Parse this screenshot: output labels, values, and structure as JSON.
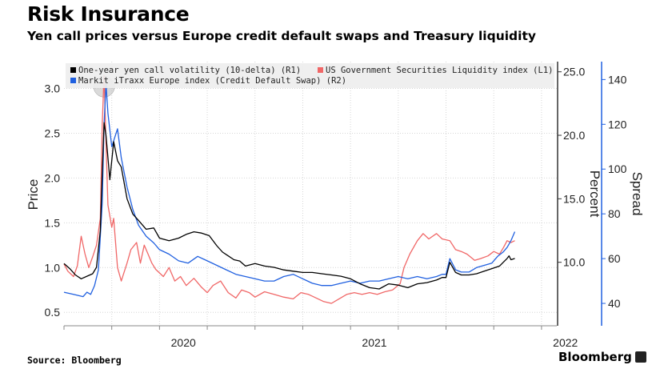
{
  "title": "Risk Insurance",
  "subtitle": "Yen call prices versus Europe credit default swaps and Treasury liquidity",
  "source": "Source: Bloomberg",
  "brand": "Bloomberg",
  "chart_data": {
    "type": "line",
    "x_ticks": [
      {
        "label": "2020",
        "t": 2020.0
      },
      {
        "label": "2021",
        "t": 2021.0
      },
      {
        "label": "2022",
        "t": 2022.0
      }
    ],
    "x_range": [
      2019.5,
      2022.08
    ],
    "grid": true,
    "legend_position": "top",
    "axes": {
      "left": {
        "title": "Price",
        "range": [
          0.35,
          3.3
        ],
        "ticks": [
          0.5,
          1.0,
          1.5,
          2.0,
          2.5,
          3.0
        ],
        "tick_labels": [
          "0.5",
          "1.0",
          "1.5",
          "2.0",
          "2.5",
          "3.0"
        ]
      },
      "right1": {
        "title": "Percent",
        "range": [
          5.0,
          25.8
        ],
        "ticks": [
          10,
          15,
          20,
          25
        ],
        "tick_labels": [
          "10.0",
          "15.0",
          "20.0",
          "25.0"
        ]
      },
      "right2": {
        "title": "Spread",
        "range": [
          30.0,
          148.0
        ],
        "ticks": [
          40,
          60,
          80,
          100,
          120,
          140
        ],
        "tick_labels": [
          "40",
          "60",
          "80",
          "100",
          "120",
          "140"
        ]
      }
    },
    "series": [
      {
        "name": "US Government Securities Liquidity index (L1)",
        "axis": "left",
        "color": "#f06767",
        "points": [
          [
            2019.5,
            1.04
          ],
          [
            2019.52,
            0.96
          ],
          [
            2019.55,
            0.9
          ],
          [
            2019.57,
            1.02
          ],
          [
            2019.59,
            1.35
          ],
          [
            2019.61,
            1.15
          ],
          [
            2019.63,
            1.0
          ],
          [
            2019.65,
            1.12
          ],
          [
            2019.67,
            1.25
          ],
          [
            2019.69,
            1.55
          ],
          [
            2019.7,
            2.6
          ],
          [
            2019.71,
            3.15
          ],
          [
            2019.72,
            2.4
          ],
          [
            2019.73,
            1.7
          ],
          [
            2019.75,
            1.45
          ],
          [
            2019.76,
            1.55
          ],
          [
            2019.78,
            1.0
          ],
          [
            2019.8,
            0.85
          ],
          [
            2019.83,
            1.05
          ],
          [
            2019.85,
            1.2
          ],
          [
            2019.88,
            1.28
          ],
          [
            2019.9,
            1.05
          ],
          [
            2019.92,
            1.25
          ],
          [
            2019.94,
            1.15
          ],
          [
            2019.96,
            1.05
          ],
          [
            2019.98,
            0.98
          ],
          [
            2020.02,
            0.9
          ],
          [
            2020.05,
            1.0
          ],
          [
            2020.08,
            0.85
          ],
          [
            2020.11,
            0.9
          ],
          [
            2020.14,
            0.8
          ],
          [
            2020.18,
            0.88
          ],
          [
            2020.22,
            0.78
          ],
          [
            2020.25,
            0.72
          ],
          [
            2020.28,
            0.8
          ],
          [
            2020.32,
            0.85
          ],
          [
            2020.36,
            0.72
          ],
          [
            2020.4,
            0.66
          ],
          [
            2020.43,
            0.75
          ],
          [
            2020.47,
            0.72
          ],
          [
            2020.5,
            0.67
          ],
          [
            2020.55,
            0.73
          ],
          [
            2020.6,
            0.7
          ],
          [
            2020.65,
            0.67
          ],
          [
            2020.7,
            0.65
          ],
          [
            2020.74,
            0.72
          ],
          [
            2020.78,
            0.7
          ],
          [
            2020.82,
            0.66
          ],
          [
            2020.86,
            0.62
          ],
          [
            2020.9,
            0.6
          ],
          [
            2020.94,
            0.65
          ],
          [
            2020.98,
            0.7
          ],
          [
            2021.02,
            0.72
          ],
          [
            2021.06,
            0.7
          ],
          [
            2021.1,
            0.72
          ],
          [
            2021.14,
            0.7
          ],
          [
            2021.18,
            0.73
          ],
          [
            2021.22,
            0.75
          ],
          [
            2021.26,
            0.82
          ],
          [
            2021.28,
            1.0
          ],
          [
            2021.31,
            1.15
          ],
          [
            2021.35,
            1.3
          ],
          [
            2021.38,
            1.38
          ],
          [
            2021.41,
            1.32
          ],
          [
            2021.45,
            1.38
          ],
          [
            2021.48,
            1.32
          ],
          [
            2021.52,
            1.3
          ],
          [
            2021.55,
            1.2
          ],
          [
            2021.58,
            1.18
          ],
          [
            2021.61,
            1.15
          ],
          [
            2021.65,
            1.08
          ],
          [
            2021.68,
            1.1
          ],
          [
            2021.72,
            1.13
          ],
          [
            2021.75,
            1.18
          ],
          [
            2021.78,
            1.15
          ],
          [
            2021.8,
            1.22
          ],
          [
            2021.82,
            1.3
          ],
          [
            2021.84,
            1.28
          ],
          [
            2021.86,
            1.3
          ]
        ]
      },
      {
        "name": "One-year yen call volatility (10-delta)    (R1)",
        "axis": "right1",
        "color": "#000000",
        "points": [
          [
            2019.5,
            9.9
          ],
          [
            2019.53,
            9.5
          ],
          [
            2019.56,
            9.0
          ],
          [
            2019.59,
            8.7
          ],
          [
            2019.62,
            8.9
          ],
          [
            2019.65,
            9.1
          ],
          [
            2019.67,
            9.6
          ],
          [
            2019.69,
            12.5
          ],
          [
            2019.7,
            17.0
          ],
          [
            2019.71,
            21.0
          ],
          [
            2019.72,
            20.0
          ],
          [
            2019.74,
            16.5
          ],
          [
            2019.76,
            19.5
          ],
          [
            2019.78,
            18.0
          ],
          [
            2019.8,
            17.5
          ],
          [
            2019.83,
            15.0
          ],
          [
            2019.86,
            13.8
          ],
          [
            2019.89,
            13.3
          ],
          [
            2019.93,
            12.6
          ],
          [
            2019.97,
            12.7
          ],
          [
            2020.0,
            11.9
          ],
          [
            2020.05,
            11.7
          ],
          [
            2020.1,
            11.9
          ],
          [
            2020.14,
            12.2
          ],
          [
            2020.18,
            12.4
          ],
          [
            2020.22,
            12.3
          ],
          [
            2020.26,
            12.1
          ],
          [
            2020.3,
            11.3
          ],
          [
            2020.33,
            10.8
          ],
          [
            2020.36,
            10.5
          ],
          [
            2020.39,
            10.2
          ],
          [
            2020.42,
            10.1
          ],
          [
            2020.45,
            9.7
          ],
          [
            2020.5,
            9.9
          ],
          [
            2020.55,
            9.7
          ],
          [
            2020.6,
            9.6
          ],
          [
            2020.65,
            9.4
          ],
          [
            2020.7,
            9.3
          ],
          [
            2020.75,
            9.2
          ],
          [
            2020.8,
            9.2
          ],
          [
            2020.85,
            9.1
          ],
          [
            2020.9,
            9.0
          ],
          [
            2020.95,
            8.9
          ],
          [
            2021.0,
            8.7
          ],
          [
            2021.05,
            8.3
          ],
          [
            2021.1,
            8.0
          ],
          [
            2021.15,
            7.9
          ],
          [
            2021.2,
            8.3
          ],
          [
            2021.25,
            8.2
          ],
          [
            2021.3,
            8.0
          ],
          [
            2021.35,
            8.3
          ],
          [
            2021.4,
            8.4
          ],
          [
            2021.45,
            8.6
          ],
          [
            2021.48,
            8.8
          ],
          [
            2021.5,
            8.8
          ],
          [
            2021.52,
            10.0
          ],
          [
            2021.55,
            9.2
          ],
          [
            2021.58,
            9.0
          ],
          [
            2021.62,
            9.0
          ],
          [
            2021.66,
            9.1
          ],
          [
            2021.7,
            9.3
          ],
          [
            2021.74,
            9.5
          ],
          [
            2021.78,
            9.7
          ],
          [
            2021.8,
            10.0
          ],
          [
            2021.82,
            10.3
          ],
          [
            2021.83,
            10.5
          ],
          [
            2021.84,
            10.2
          ],
          [
            2021.86,
            10.3
          ]
        ]
      },
      {
        "name": "Markit iTraxx Europe index (Credit Default Swap) (R2)",
        "axis": "right2",
        "color": "#2060e0",
        "points": [
          [
            2019.5,
            45
          ],
          [
            2019.55,
            44
          ],
          [
            2019.6,
            43
          ],
          [
            2019.62,
            45
          ],
          [
            2019.64,
            44
          ],
          [
            2019.66,
            48
          ],
          [
            2019.68,
            55
          ],
          [
            2019.7,
            85
          ],
          [
            2019.71,
            120
          ],
          [
            2019.72,
            138
          ],
          [
            2019.73,
            125
          ],
          [
            2019.75,
            110
          ],
          [
            2019.78,
            118
          ],
          [
            2019.8,
            105
          ],
          [
            2019.83,
            92
          ],
          [
            2019.86,
            82
          ],
          [
            2019.89,
            75
          ],
          [
            2019.93,
            70
          ],
          [
            2019.97,
            67
          ],
          [
            2020.0,
            64
          ],
          [
            2020.05,
            62
          ],
          [
            2020.1,
            59
          ],
          [
            2020.15,
            58
          ],
          [
            2020.2,
            61
          ],
          [
            2020.25,
            59
          ],
          [
            2020.3,
            57
          ],
          [
            2020.35,
            55
          ],
          [
            2020.4,
            53
          ],
          [
            2020.45,
            52
          ],
          [
            2020.5,
            51
          ],
          [
            2020.55,
            50
          ],
          [
            2020.6,
            50
          ],
          [
            2020.65,
            52
          ],
          [
            2020.7,
            53
          ],
          [
            2020.75,
            51
          ],
          [
            2020.8,
            49
          ],
          [
            2020.85,
            48
          ],
          [
            2020.9,
            48
          ],
          [
            2020.95,
            49
          ],
          [
            2021.0,
            50
          ],
          [
            2021.05,
            49
          ],
          [
            2021.1,
            50
          ],
          [
            2021.15,
            50
          ],
          [
            2021.2,
            51
          ],
          [
            2021.25,
            52
          ],
          [
            2021.3,
            51
          ],
          [
            2021.35,
            52
          ],
          [
            2021.4,
            51
          ],
          [
            2021.45,
            52
          ],
          [
            2021.48,
            53
          ],
          [
            2021.5,
            53
          ],
          [
            2021.52,
            60
          ],
          [
            2021.55,
            55
          ],
          [
            2021.58,
            54
          ],
          [
            2021.62,
            54
          ],
          [
            2021.66,
            56
          ],
          [
            2021.7,
            57
          ],
          [
            2021.74,
            58
          ],
          [
            2021.77,
            61
          ],
          [
            2021.8,
            63
          ],
          [
            2021.82,
            65
          ],
          [
            2021.84,
            68
          ],
          [
            2021.86,
            72
          ]
        ]
      }
    ],
    "annotation": {
      "type": "highlight-circle",
      "t": 2019.71,
      "left_value": 3.02
    }
  }
}
